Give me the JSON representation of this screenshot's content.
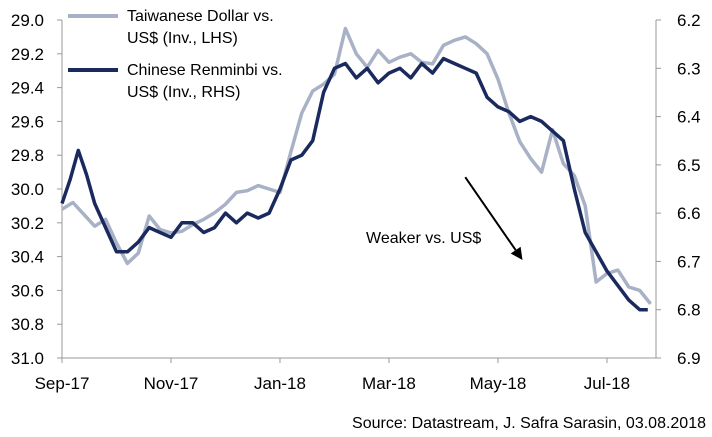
{
  "chart_data": {
    "type": "line",
    "x_tick_labels": [
      "Sep-17",
      "Nov-17",
      "Jan-18",
      "Mar-18",
      "May-18",
      "Jul-18"
    ],
    "left_axis": {
      "ticks": [
        "29.0",
        "29.2",
        "29.4",
        "29.6",
        "29.8",
        "30.0",
        "30.2",
        "30.4",
        "30.6",
        "30.8",
        "31.0"
      ],
      "range": [
        29.0,
        31.0
      ],
      "inverted": true
    },
    "right_axis": {
      "ticks": [
        "6.2",
        "6.3",
        "6.4",
        "6.5",
        "6.6",
        "6.7",
        "6.8",
        "6.9"
      ],
      "range": [
        6.2,
        6.9
      ],
      "inverted": true
    },
    "x_range_months": [
      0,
      10.9
    ],
    "series": [
      {
        "name_line1": "Taiwanese Dollar vs.",
        "name_line2": "US$ (Inv., LHS)",
        "axis": "left",
        "color": "#a8b1c6",
        "x": [
          0,
          0.2,
          0.4,
          0.6,
          0.8,
          1.0,
          1.2,
          1.4,
          1.6,
          1.8,
          2.0,
          2.2,
          2.4,
          2.6,
          2.8,
          3.0,
          3.2,
          3.4,
          3.6,
          3.8,
          4.0,
          4.2,
          4.4,
          4.6,
          4.8,
          5.0,
          5.2,
          5.4,
          5.6,
          5.8,
          6.0,
          6.2,
          6.4,
          6.6,
          6.8,
          7.0,
          7.2,
          7.4,
          7.6,
          7.8,
          8.0,
          8.2,
          8.4,
          8.6,
          8.8,
          9.0,
          9.2,
          9.4,
          9.6,
          9.8,
          10.0,
          10.2,
          10.4,
          10.6,
          10.8
        ],
        "values": [
          30.12,
          30.08,
          30.15,
          30.22,
          30.18,
          30.32,
          30.44,
          30.38,
          30.16,
          30.24,
          30.26,
          30.25,
          30.21,
          30.18,
          30.14,
          30.09,
          30.02,
          30.01,
          29.98,
          30.0,
          30.02,
          29.78,
          29.55,
          29.42,
          29.38,
          29.32,
          29.05,
          29.2,
          29.28,
          29.18,
          29.25,
          29.22,
          29.2,
          29.25,
          29.26,
          29.15,
          29.12,
          29.1,
          29.14,
          29.2,
          29.35,
          29.55,
          29.72,
          29.82,
          29.9,
          29.65,
          29.85,
          29.92,
          30.1,
          30.55,
          30.5,
          30.48,
          30.58,
          30.6,
          30.68
        ]
      },
      {
        "name_line1": "Chinese Renminbi vs.",
        "name_line2": "US$ (Inv., RHS)",
        "axis": "right",
        "color": "#1a2a5e",
        "x": [
          0,
          0.15,
          0.3,
          0.45,
          0.6,
          0.8,
          1.0,
          1.2,
          1.4,
          1.6,
          1.8,
          2.0,
          2.2,
          2.4,
          2.6,
          2.8,
          3.0,
          3.2,
          3.4,
          3.6,
          3.8,
          4.0,
          4.2,
          4.4,
          4.6,
          4.8,
          5.0,
          5.2,
          5.4,
          5.6,
          5.8,
          6.0,
          6.2,
          6.4,
          6.6,
          6.8,
          7.0,
          7.2,
          7.4,
          7.6,
          7.8,
          8.0,
          8.2,
          8.4,
          8.6,
          8.8,
          9.0,
          9.2,
          9.4,
          9.6,
          9.8,
          10.0,
          10.2,
          10.4,
          10.6,
          10.75
        ],
        "values": [
          6.58,
          6.53,
          6.47,
          6.52,
          6.58,
          6.63,
          6.68,
          6.68,
          6.66,
          6.63,
          6.64,
          6.65,
          6.62,
          6.62,
          6.64,
          6.63,
          6.6,
          6.62,
          6.6,
          6.61,
          6.6,
          6.55,
          6.49,
          6.48,
          6.45,
          6.35,
          6.3,
          6.29,
          6.32,
          6.3,
          6.33,
          6.31,
          6.3,
          6.32,
          6.29,
          6.31,
          6.28,
          6.29,
          6.3,
          6.31,
          6.36,
          6.38,
          6.39,
          6.41,
          6.4,
          6.41,
          6.43,
          6.45,
          6.55,
          6.64,
          6.68,
          6.72,
          6.75,
          6.78,
          6.8,
          6.8
        ]
      }
    ],
    "annotation": {
      "text": "Weaker vs. US$",
      "arrow_from": [
        7.4,
        29.93
      ],
      "arrow_to": [
        8.45,
        30.42
      ]
    },
    "source": "Source: Datastream, J. Safra Sarasin, 03.08.2018"
  }
}
